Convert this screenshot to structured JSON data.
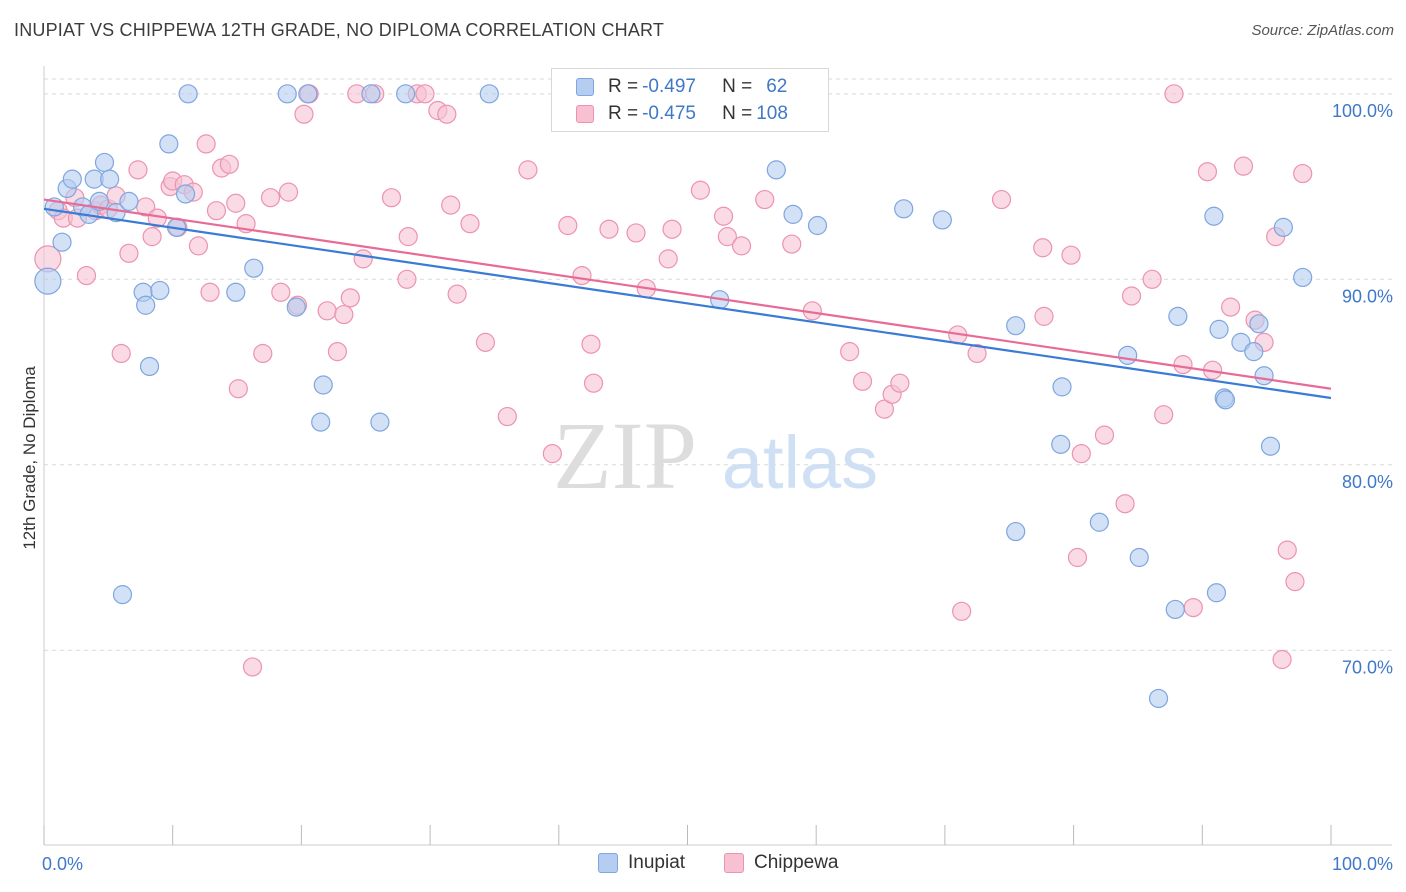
{
  "title": "INUPIAT VS CHIPPEWA 12TH GRADE, NO DIPLOMA CORRELATION CHART",
  "source": "Source: ZipAtlas.com",
  "watermark": {
    "zip": "ZIP",
    "atlas": "atlas"
  },
  "colors": {
    "inupiat_fill": "#b4cdf0",
    "inupiat_stroke": "#7fa6de",
    "inupiat_line": "#3a7bd5",
    "chippewa_fill": "#f7c1d2",
    "chippewa_stroke": "#ec93b1",
    "chippewa_line": "#e86b97",
    "tick_label": "#3f78c8",
    "grid": "#d9d9d9"
  },
  "legend": {
    "rows": [
      {
        "r_label": "R = ",
        "r_value": "-0.497",
        "n_label": "N = ",
        "n_value": "62"
      },
      {
        "r_label": "R = ",
        "r_value": "-0.475",
        "n_label": "N = ",
        "n_value": "108"
      }
    ]
  },
  "chart_data": {
    "type": "scatter",
    "title": "INUPIAT VS CHIPPEWA 12TH GRADE, NO DIPLOMA CORRELATION CHART",
    "xlabel": "",
    "ylabel": "12th Grade, No Diploma",
    "xlim": [
      0,
      100
    ],
    "ylim": [
      59.5,
      101.5
    ],
    "x_tick_labels": [
      "0.0%",
      "100.0%"
    ],
    "y_ticks": [
      70,
      80,
      90,
      100
    ],
    "y_tick_labels": [
      "70.0%",
      "80.0%",
      "90.0%",
      "100.0%"
    ],
    "grid": true,
    "series": [
      {
        "name": "Inupiat",
        "r": -0.497,
        "n": 62,
        "trend": {
          "x0": 0,
          "y0": 93.8,
          "x1": 100,
          "y1": 83.6
        },
        "points": [
          [
            0.3,
            89.9
          ],
          [
            0.8,
            93.9
          ],
          [
            1.4,
            92.0
          ],
          [
            1.8,
            94.9
          ],
          [
            2.2,
            95.4
          ],
          [
            3.0,
            93.9
          ],
          [
            3.5,
            93.5
          ],
          [
            3.9,
            95.4
          ],
          [
            4.3,
            94.2
          ],
          [
            4.7,
            96.3
          ],
          [
            5.1,
            95.4
          ],
          [
            5.6,
            93.6
          ],
          [
            6.6,
            94.2
          ],
          [
            6.1,
            73.0
          ],
          [
            7.7,
            89.3
          ],
          [
            7.9,
            88.6
          ],
          [
            8.2,
            85.3
          ],
          [
            9.0,
            89.4
          ],
          [
            9.7,
            97.3
          ],
          [
            10.3,
            92.8
          ],
          [
            11.0,
            94.6
          ],
          [
            11.2,
            100.0
          ],
          [
            14.9,
            89.3
          ],
          [
            16.3,
            90.6
          ],
          [
            18.9,
            100.0
          ],
          [
            19.6,
            88.5
          ],
          [
            20.5,
            100.0
          ],
          [
            21.7,
            84.3
          ],
          [
            21.5,
            82.3
          ],
          [
            25.4,
            100.0
          ],
          [
            26.1,
            82.3
          ],
          [
            28.1,
            100.0
          ],
          [
            34.6,
            100.0
          ],
          [
            47.1,
            100.0
          ],
          [
            52.5,
            88.9
          ],
          [
            56.9,
            95.9
          ],
          [
            58.2,
            93.5
          ],
          [
            60.1,
            92.9
          ],
          [
            66.8,
            93.8
          ],
          [
            69.8,
            93.2
          ],
          [
            75.5,
            87.5
          ],
          [
            75.5,
            76.4
          ],
          [
            79.1,
            84.2
          ],
          [
            79.0,
            81.1
          ],
          [
            82.0,
            76.9
          ],
          [
            84.2,
            85.9
          ],
          [
            85.1,
            75.0
          ],
          [
            86.6,
            67.4
          ],
          [
            88.1,
            88.0
          ],
          [
            87.9,
            72.2
          ],
          [
            91.3,
            87.3
          ],
          [
            90.9,
            93.4
          ],
          [
            91.1,
            73.1
          ],
          [
            91.7,
            83.6
          ],
          [
            91.8,
            83.5
          ],
          [
            93.0,
            86.6
          ],
          [
            94.0,
            86.1
          ],
          [
            94.4,
            87.6
          ],
          [
            94.8,
            84.8
          ],
          [
            95.3,
            81.0
          ],
          [
            96.3,
            92.8
          ],
          [
            97.8,
            90.1
          ]
        ]
      },
      {
        "name": "Chippewa",
        "r": -0.475,
        "n": 108,
        "trend": {
          "x0": 0,
          "y0": 94.3,
          "x1": 100,
          "y1": 84.1
        },
        "points": [
          [
            0.3,
            91.1
          ],
          [
            1.1,
            93.7
          ],
          [
            1.5,
            93.3
          ],
          [
            2.4,
            94.4
          ],
          [
            2.6,
            93.3
          ],
          [
            3.3,
            90.2
          ],
          [
            4.0,
            93.7
          ],
          [
            4.4,
            94.0
          ],
          [
            5.0,
            93.8
          ],
          [
            5.6,
            94.5
          ],
          [
            6.0,
            86.0
          ],
          [
            6.6,
            91.4
          ],
          [
            7.3,
            95.9
          ],
          [
            7.9,
            93.9
          ],
          [
            8.4,
            92.3
          ],
          [
            8.8,
            93.3
          ],
          [
            9.8,
            95.0
          ],
          [
            10.0,
            95.3
          ],
          [
            10.4,
            92.8
          ],
          [
            10.9,
            95.1
          ],
          [
            11.6,
            94.7
          ],
          [
            12.0,
            91.8
          ],
          [
            12.6,
            97.3
          ],
          [
            12.9,
            89.3
          ],
          [
            13.4,
            93.7
          ],
          [
            13.8,
            96.0
          ],
          [
            14.4,
            96.2
          ],
          [
            14.9,
            94.1
          ],
          [
            15.1,
            84.1
          ],
          [
            15.7,
            93.0
          ],
          [
            16.2,
            69.1
          ],
          [
            17.0,
            86.0
          ],
          [
            17.6,
            94.4
          ],
          [
            18.4,
            89.3
          ],
          [
            19.0,
            94.7
          ],
          [
            19.7,
            88.6
          ],
          [
            20.2,
            98.9
          ],
          [
            20.6,
            100.0
          ],
          [
            22.0,
            88.3
          ],
          [
            22.8,
            86.1
          ],
          [
            23.3,
            88.1
          ],
          [
            23.8,
            89.0
          ],
          [
            24.3,
            100.0
          ],
          [
            24.8,
            91.1
          ],
          [
            25.7,
            100.0
          ],
          [
            27.0,
            94.4
          ],
          [
            28.2,
            90.0
          ],
          [
            28.3,
            92.3
          ],
          [
            29.0,
            100.0
          ],
          [
            29.6,
            100.0
          ],
          [
            30.6,
            99.1
          ],
          [
            31.3,
            98.9
          ],
          [
            31.6,
            94.0
          ],
          [
            32.1,
            89.2
          ],
          [
            33.1,
            93.0
          ],
          [
            34.3,
            86.6
          ],
          [
            36.0,
            82.6
          ],
          [
            37.6,
            95.9
          ],
          [
            39.5,
            80.6
          ],
          [
            40.7,
            92.9
          ],
          [
            41.8,
            90.2
          ],
          [
            42.5,
            86.5
          ],
          [
            42.7,
            84.4
          ],
          [
            43.9,
            92.7
          ],
          [
            46.0,
            92.5
          ],
          [
            46.8,
            89.5
          ],
          [
            48.8,
            92.7
          ],
          [
            48.5,
            91.1
          ],
          [
            51.0,
            94.8
          ],
          [
            52.8,
            93.4
          ],
          [
            53.1,
            92.3
          ],
          [
            54.2,
            91.8
          ],
          [
            56.0,
            94.3
          ],
          [
            58.1,
            91.9
          ],
          [
            59.7,
            88.3
          ],
          [
            62.6,
            86.1
          ],
          [
            63.6,
            84.5
          ],
          [
            65.3,
            83.0
          ],
          [
            65.9,
            83.8
          ],
          [
            66.5,
            84.4
          ],
          [
            71.0,
            87.0
          ],
          [
            71.3,
            72.1
          ],
          [
            72.5,
            86.0
          ],
          [
            74.4,
            94.3
          ],
          [
            77.7,
            88.0
          ],
          [
            77.6,
            91.7
          ],
          [
            79.8,
            91.3
          ],
          [
            80.3,
            75.0
          ],
          [
            80.6,
            80.6
          ],
          [
            82.4,
            81.6
          ],
          [
            84.0,
            77.9
          ],
          [
            84.5,
            89.1
          ],
          [
            86.1,
            90.0
          ],
          [
            87.0,
            82.7
          ],
          [
            87.8,
            100.0
          ],
          [
            88.5,
            85.4
          ],
          [
            89.3,
            72.3
          ],
          [
            90.4,
            95.8
          ],
          [
            90.8,
            85.1
          ],
          [
            92.2,
            88.5
          ],
          [
            93.2,
            96.1
          ],
          [
            94.1,
            87.8
          ],
          [
            94.8,
            86.6
          ],
          [
            95.7,
            92.3
          ],
          [
            96.2,
            69.5
          ],
          [
            96.6,
            75.4
          ],
          [
            97.2,
            73.7
          ],
          [
            97.8,
            95.7
          ]
        ]
      }
    ]
  }
}
